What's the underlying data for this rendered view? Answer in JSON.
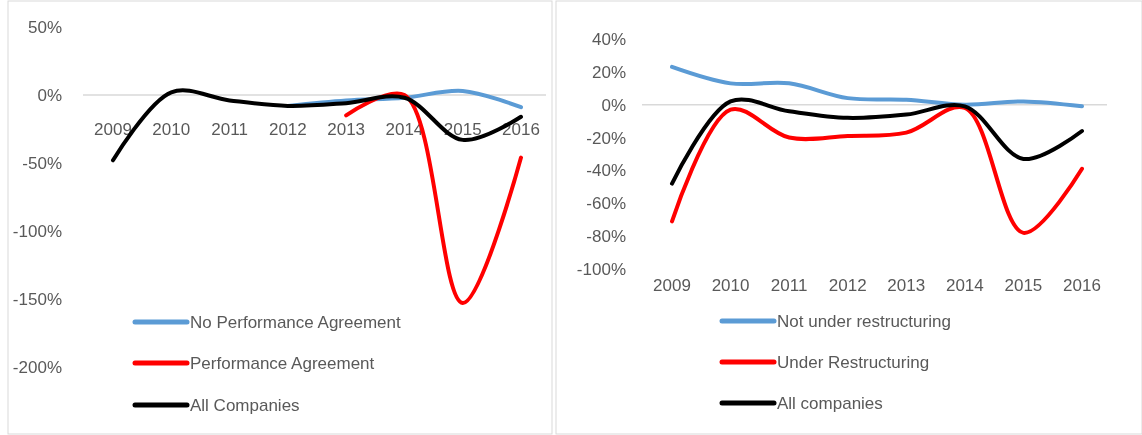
{
  "chart_data": [
    {
      "type": "line",
      "categories": [
        "2009",
        "2010",
        "2011",
        "2012",
        "2013",
        "2014",
        "2015",
        "2016"
      ],
      "ylim": [
        -250,
        50
      ],
      "yticks": [
        {
          "value": 50,
          "label": "50%"
        },
        {
          "value": 0,
          "label": "0%"
        },
        {
          "value": -50,
          "label": "-50%"
        },
        {
          "value": -100,
          "label": "-100%"
        },
        {
          "value": -150,
          "label": "-150%"
        },
        {
          "value": -200,
          "label": "-200%"
        }
      ],
      "legend": "bottom",
      "series": [
        {
          "name": "No Performance Agreement",
          "color": "#5b9bd5",
          "values": [
            null,
            null,
            null,
            -8,
            -4,
            -2,
            3,
            -9
          ]
        },
        {
          "name": "Performance Agreement",
          "color": "#ff0000",
          "values": [
            null,
            null,
            null,
            null,
            -15,
            0,
            -153,
            -46
          ]
        },
        {
          "name": "All Companies",
          "color": "#000000",
          "values": [
            -48,
            2,
            -4,
            -8,
            -6,
            -2,
            -33,
            -16
          ]
        }
      ]
    },
    {
      "type": "line",
      "categories": [
        "2009",
        "2010",
        "2011",
        "2012",
        "2013",
        "2014",
        "2015",
        "2016"
      ],
      "ylim": [
        -100,
        40
      ],
      "yticks": [
        {
          "value": 40,
          "label": "40%"
        },
        {
          "value": 20,
          "label": "20%"
        },
        {
          "value": 0,
          "label": "0%"
        },
        {
          "value": -20,
          "label": "-20%"
        },
        {
          "value": -40,
          "label": "-40%"
        },
        {
          "value": -60,
          "label": "-60%"
        },
        {
          "value": -80,
          "label": "-80%"
        },
        {
          "value": -100,
          "label": "-100%"
        }
      ],
      "legend": "bottom",
      "series": [
        {
          "name": "Not under restructuring",
          "color": "#5b9bd5",
          "values": [
            23,
            13,
            13,
            4,
            3,
            0,
            2,
            -1
          ]
        },
        {
          "name": "Under Restructuring",
          "color": "#ff0000",
          "values": [
            -71,
            -3,
            -20,
            -19,
            -17,
            -2,
            -78,
            -39
          ]
        },
        {
          "name": "All companies",
          "color": "#000000",
          "values": [
            -48,
            2,
            -4,
            -8,
            -6,
            -1,
            -33,
            -16
          ]
        }
      ]
    }
  ]
}
